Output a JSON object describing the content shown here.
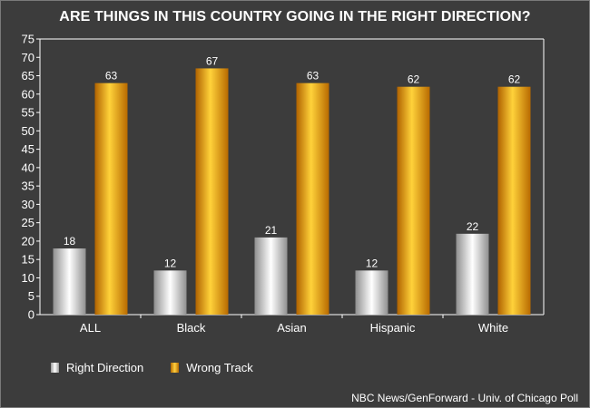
{
  "chart_data": {
    "type": "bar",
    "title": "ARE THINGS IN THIS COUNTRY GOING IN THE RIGHT DIRECTION?",
    "categories": [
      "ALL",
      "Black",
      "Asian",
      "Hispanic",
      "White"
    ],
    "series": [
      {
        "name": "Right Direction",
        "values": [
          18,
          12,
          21,
          12,
          22
        ],
        "color": "#e6e6e6"
      },
      {
        "name": "Wrong Track",
        "values": [
          63,
          67,
          63,
          62,
          62
        ],
        "color": "#f0a010"
      }
    ],
    "ylim": [
      0,
      75
    ],
    "yticks": [
      "0",
      "5",
      "10",
      "15",
      "20",
      "25",
      "30",
      "35",
      "40",
      "45",
      "50",
      "55",
      "60",
      "65",
      "70",
      "75"
    ],
    "grid": false,
    "legend_position": "bottom-left",
    "xlabel": "",
    "ylabel": ""
  },
  "source": "NBC News/GenForward - Univ. of Chicago Poll",
  "colors": {
    "background": "#3c3c3c",
    "axis": "#ffffff",
    "text": "#ffffff"
  }
}
